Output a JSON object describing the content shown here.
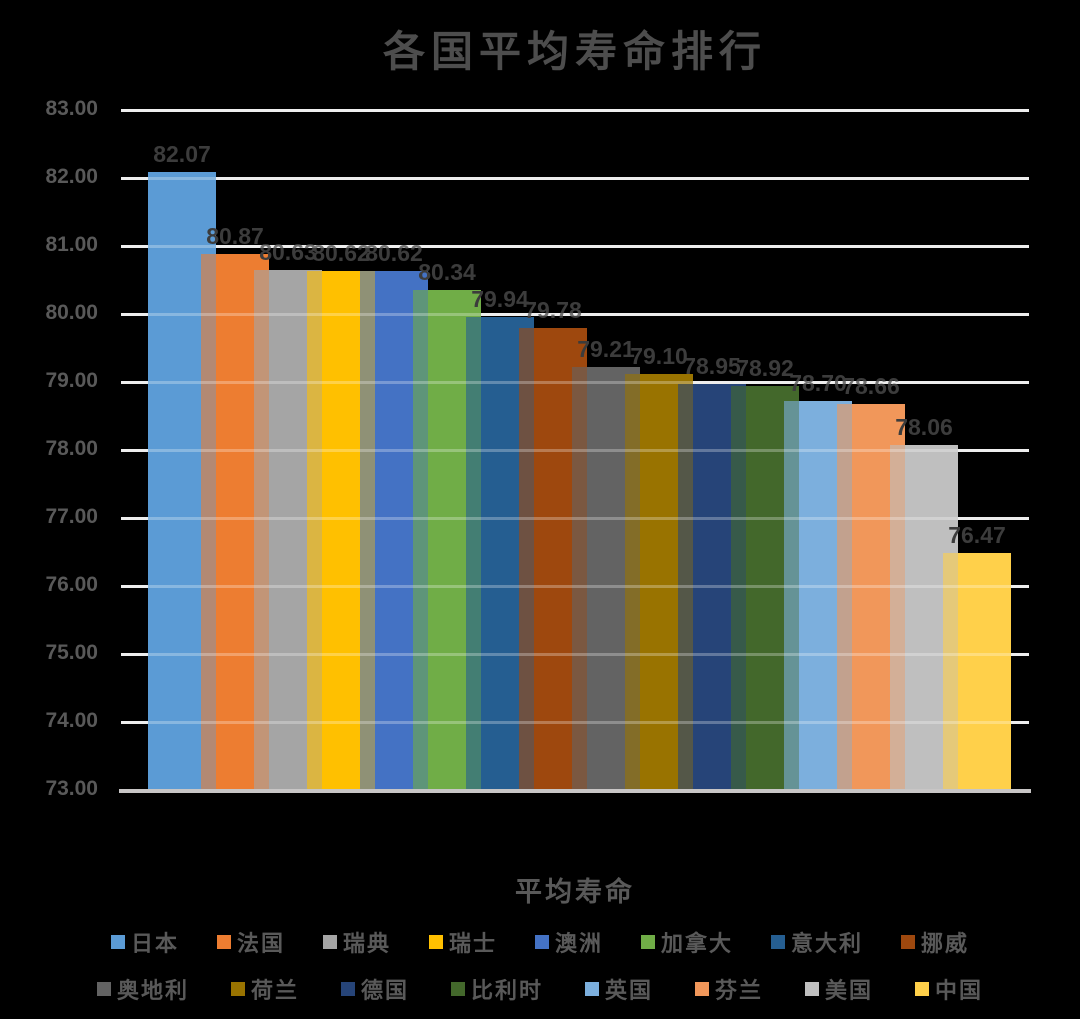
{
  "title": "各国平均寿命排行",
  "x_axis_label": "平均寿命",
  "style_colors": {
    "background": "#000000",
    "gridline": "#E8E8E8",
    "axis_line": "#C8C6C6",
    "title_text": "#4D4D4D",
    "tick_text": "#595959",
    "value_label_text": "#3C3C3C",
    "legend_text": "#595959"
  },
  "chart_data": {
    "type": "bar",
    "title": "各国平均寿命排行",
    "xlabel": "平均寿命",
    "ylabel": "",
    "ylim": [
      73,
      83
    ],
    "y_tick_step": 1,
    "y_tick_labels": [
      "83.00",
      "82.00",
      "81.00",
      "80.00",
      "79.00",
      "78.00",
      "77.00",
      "76.00",
      "75.00",
      "74.00",
      "73.00"
    ],
    "grid": true,
    "value_labels_shown": true,
    "legend_position": "bottom",
    "bar_style": "overlapping-translucent",
    "series": [
      {
        "name": "日本",
        "value": 82.07,
        "color": "#5B9BD5"
      },
      {
        "name": "法国",
        "value": 80.87,
        "color": "#ED7D31"
      },
      {
        "name": "瑞典",
        "value": 80.63,
        "color": "#A5A5A5"
      },
      {
        "name": "瑞士",
        "value": 80.62,
        "color": "#FFC000"
      },
      {
        "name": "澳洲",
        "value": 80.62,
        "color": "#4472C4"
      },
      {
        "name": "加拿大",
        "value": 80.34,
        "color": "#70AD47"
      },
      {
        "name": "意大利",
        "value": 79.94,
        "color": "#255E91"
      },
      {
        "name": "挪威",
        "value": 79.78,
        "color": "#9E480E"
      },
      {
        "name": "奥地利",
        "value": 79.21,
        "color": "#636363"
      },
      {
        "name": "荷兰",
        "value": 79.1,
        "color": "#997300"
      },
      {
        "name": "德国",
        "value": 78.95,
        "color": "#264478"
      },
      {
        "name": "比利时",
        "value": 78.92,
        "color": "#43682B"
      },
      {
        "name": "英国",
        "value": 78.7,
        "color": "#7CAFDD"
      },
      {
        "name": "芬兰",
        "value": 78.66,
        "color": "#F1975A"
      },
      {
        "name": "美国",
        "value": 78.06,
        "color": "#BFBFBF"
      },
      {
        "name": "中国",
        "value": 76.47,
        "color": "#FFD04A"
      }
    ],
    "legend_rows": [
      [
        "日本",
        "法国",
        "瑞典",
        "瑞士",
        "澳洲",
        "加拿大",
        "意大利",
        "挪威"
      ],
      [
        "奥地利",
        "荷兰",
        "德国",
        "比利时",
        "英国",
        "芬兰",
        "美国",
        "中国"
      ]
    ]
  }
}
